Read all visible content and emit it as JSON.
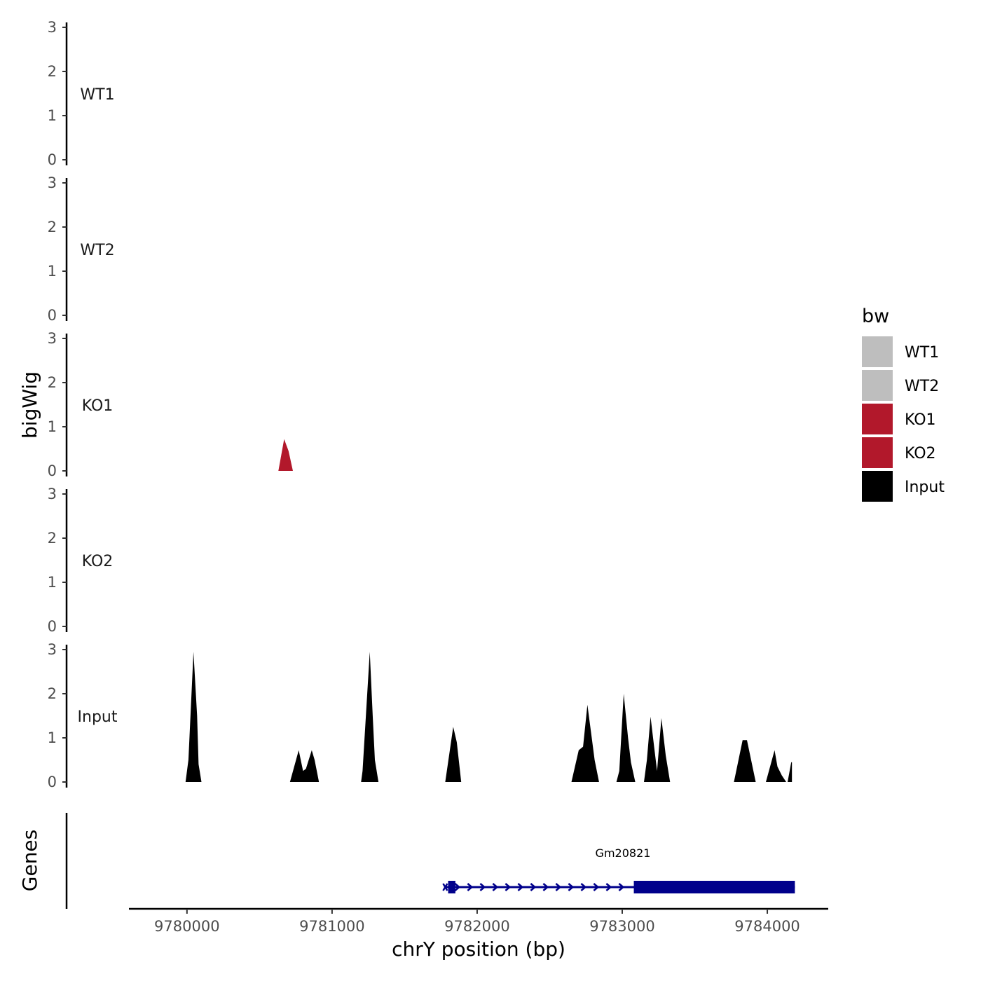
{
  "chart_data": {
    "type": "area",
    "title": "",
    "ylabel": "bigWig",
    "xlabel": "chrY position (bp)",
    "xlim": [
      9779600,
      9784420
    ],
    "ylim": [
      0,
      3
    ],
    "yticks": [
      0,
      1,
      2,
      3
    ],
    "xticks": [
      9780000,
      9781000,
      9782000,
      9783000,
      9784000
    ],
    "xtick_labels": [
      "9780000",
      "9781000",
      "9782000",
      "9783000",
      "9784000"
    ],
    "grid": false,
    "legend": {
      "title": "bw",
      "placement": "right",
      "entries": [
        {
          "label": "WT1",
          "color": "#bebebe"
        },
        {
          "label": "WT2",
          "color": "#bebebe"
        },
        {
          "label": "KO1",
          "color": "#b2182b"
        },
        {
          "label": "KO2",
          "color": "#b2182b"
        },
        {
          "label": "Input",
          "color": "#000000"
        }
      ]
    },
    "tracks": [
      {
        "name": "WT1",
        "color": "#bebebe",
        "peaks": []
      },
      {
        "name": "WT2",
        "color": "#bebebe",
        "peaks": []
      },
      {
        "name": "KO1",
        "color": "#b2182b",
        "peaks": [
          {
            "points": [
              [
                9780630,
                0
              ],
              [
                9780670,
                0.72
              ],
              [
                9780700,
                0.45
              ],
              [
                9780730,
                0
              ]
            ]
          }
        ]
      },
      {
        "name": "KO2",
        "color": "#b2182b",
        "peaks": []
      },
      {
        "name": "Input",
        "color": "#000000",
        "peaks": [
          {
            "points": [
              [
                9779990,
                0
              ],
              [
                9780010,
                0.5
              ],
              [
                9780045,
                2.95
              ],
              [
                9780070,
                1.5
              ],
              [
                9780080,
                0.4
              ],
              [
                9780100,
                0
              ]
            ]
          },
          {
            "points": [
              [
                9780710,
                0
              ],
              [
                9780770,
                0.72
              ],
              [
                9780800,
                0.25
              ],
              [
                9780820,
                0.3
              ],
              [
                9780860,
                0.72
              ],
              [
                9780880,
                0.5
              ],
              [
                9780910,
                0
              ]
            ]
          },
          {
            "points": [
              [
                9781200,
                0
              ],
              [
                9781210,
                0.25
              ],
              [
                9781260,
                2.95
              ],
              [
                9781280,
                1.5
              ],
              [
                9781295,
                0.5
              ],
              [
                9781320,
                0
              ]
            ]
          },
          {
            "points": [
              [
                9781780,
                0
              ],
              [
                9781800,
                0.45
              ],
              [
                9781835,
                1.25
              ],
              [
                9781860,
                0.9
              ],
              [
                9781890,
                0
              ]
            ]
          },
          {
            "points": [
              [
                9782650,
                0
              ],
              [
                9782700,
                0.72
              ],
              [
                9782730,
                0.8
              ],
              [
                9782760,
                1.75
              ],
              [
                9782790,
                1.0
              ],
              [
                9782810,
                0.5
              ],
              [
                9782840,
                0
              ]
            ]
          },
          {
            "points": [
              [
                9782960,
                0
              ],
              [
                9782980,
                0.25
              ],
              [
                9783010,
                2.0
              ],
              [
                9783040,
                1.0
              ],
              [
                9783060,
                0.45
              ],
              [
                9783090,
                0
              ]
            ]
          },
          {
            "points": [
              [
                9783150,
                0
              ],
              [
                9783170,
                0.5
              ],
              [
                9783195,
                1.48
              ],
              [
                9783220,
                0.8
              ],
              [
                9783240,
                0.25
              ],
              [
                9783270,
                1.45
              ],
              [
                9783300,
                0.6
              ],
              [
                9783330,
                0
              ]
            ]
          },
          {
            "points": [
              [
                9783770,
                0
              ],
              [
                9783830,
                0.95
              ],
              [
                9783860,
                0.95
              ],
              [
                9783920,
                0
              ]
            ]
          },
          {
            "points": [
              [
                9783990,
                0
              ],
              [
                9784050,
                0.72
              ],
              [
                9784070,
                0.35
              ],
              [
                9784100,
                0.15
              ],
              [
                9784130,
                0
              ]
            ]
          },
          {
            "points": [
              [
                9784140,
                0
              ],
              [
                9784165,
                0.45
              ],
              [
                9784170,
                0.45
              ],
              [
                9784170,
                0
              ]
            ]
          }
        ]
      }
    ],
    "genes_track": {
      "label": "Genes",
      "gene": {
        "name": "Gm20821",
        "start": 9781780,
        "end": 9784190,
        "strand": "+",
        "color": "#00008b",
        "exons": [
          [
            9781800,
            9781850
          ],
          [
            9783080,
            9784190
          ]
        ]
      }
    }
  }
}
